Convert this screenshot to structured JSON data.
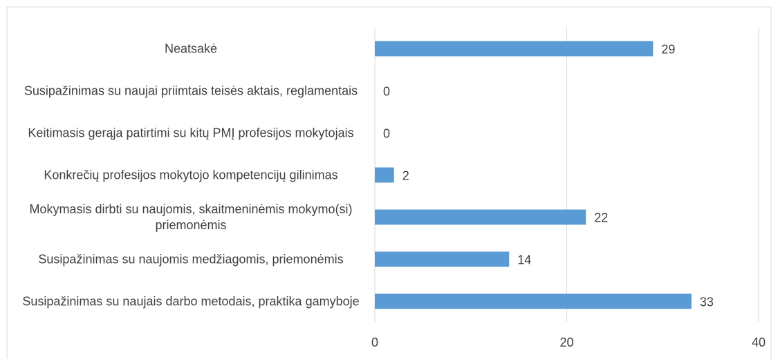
{
  "chart_data": {
    "type": "bar",
    "orientation": "horizontal",
    "categories": [
      "Neatsakė",
      "Susipažinimas su naujai priimtais teisės aktais, reglamentais",
      "Keitimasis gerąja patirtimi su kitų PMĮ profesijos mokytojais",
      "Konkrečių profesijos mokytojo kompetencijų gilinimas",
      "Mokymasis dirbti su naujomis, skaitmeninėmis mokymo(si) priemonėmis",
      "Susipažinimas su naujomis medžiagomis, priemonėmis",
      "Susipažinimas su naujais darbo metodais, praktika gamyboje"
    ],
    "values": [
      29,
      0,
      0,
      2,
      22,
      14,
      33
    ],
    "color": "#5b9bd5",
    "xlim": [
      0,
      40
    ],
    "xticks": [
      0,
      20,
      40
    ],
    "grid": true
  }
}
